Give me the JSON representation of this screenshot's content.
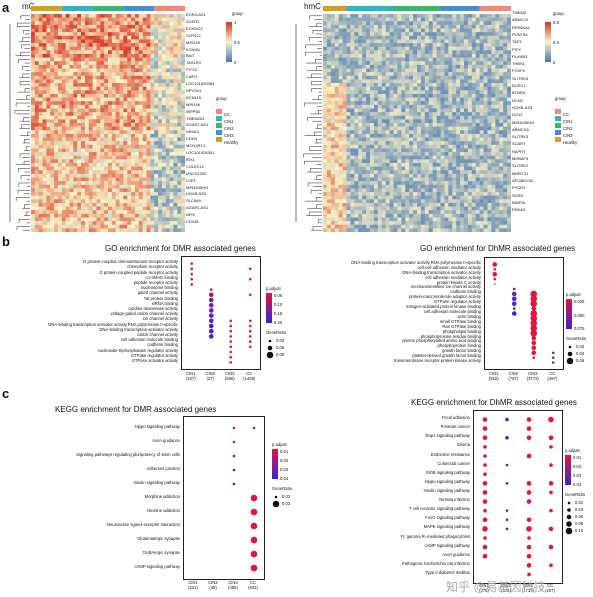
{
  "panels": {
    "a": "a",
    "b": "b",
    "c": "c"
  },
  "heatmap_left": {
    "title": "mC",
    "genes": [
      "EGR3-AS1",
      "ACER2",
      "ECHDC3",
      "SLFN12",
      "MIR155",
      "KCNH5",
      "BAIT",
      "TAS1R3",
      "PITX2",
      "CAPG",
      "LOC101929453",
      "DPYSL5",
      "RCN115",
      "MIR146",
      "INPP5D",
      "TMEM204",
      "AGAP2-AS1",
      "NR4A3",
      "CDH4",
      "MCN1R1.1",
      "LOC101928301",
      "IRX1",
      "COLEC11",
      "LINC01202",
      "LSP1",
      "MIR4435HG",
      "HOXB-AS3",
      "SLC9A9",
      "AGAP2-AS1",
      "NFIX",
      "CD248"
    ],
    "colorbar_ticks": [
      "1",
      "0.5",
      "0"
    ],
    "group_title": "group",
    "group_items": [
      "CC",
      "CIN1",
      "CIN2",
      "CIN3",
      "Healthy"
    ],
    "group_colors": [
      "#f58873",
      "#2ab8c4",
      "#34bb6a",
      "#3f8fdb",
      "#d4a016"
    ]
  },
  "heatmap_right": {
    "title": "hmC",
    "genes": [
      "TMEM2",
      "ARMC10",
      "RPS6KA1",
      "PLSCR4",
      "TAF3",
      "PITX",
      "PLXNB3",
      "THBS1",
      "FOXP2",
      "SLITRK3",
      "RUSC1",
      "BTBD9",
      "HCN2",
      "HOXB-AS3",
      "DLG2",
      "MIR4435HG",
      "ARMCX6",
      "SLITRK3",
      "SCART",
      "NAPRT",
      "MIR6879",
      "SLITRK2",
      "MIR6731",
      "APOBEC3C",
      "PYCR1",
      "SGSH",
      "BNIP3L",
      "PHKA2"
    ],
    "colorbar_ticks": [
      "0.8",
      "0.4",
      "0"
    ],
    "group_title": "group",
    "group_items": [
      "CC",
      "CIN1",
      "CIN2",
      "CIN3",
      "Healthy"
    ]
  },
  "padjust_title": "p.adjust",
  "generatio_title": "GeneRatio",
  "watermark": "知乎 @易基因科技",
  "chart_data": [
    {
      "type": "scatter",
      "title": "GO enrichment for DMR associated genes",
      "categories": [
        "CIN1\n(107)",
        "CIN2\n(27)",
        "CIN3\n(589)",
        "CC\n(1408)"
      ],
      "terms": [
        "G protein-coupled chemoattractant receptor activity",
        "chemokine receptor activity",
        "G protein-coupled peptide receptor activity",
        "co-SMAD binding",
        "peptide receptor activity",
        "nucleosome binding",
        "gated channel activity",
        "Tat protein binding",
        "siRNA binding",
        "cytidine deaminase activity",
        "voltage-gated cation channel activity",
        "ion channel activity",
        "DNA-binding transcription activator activity,RNA polymerase II-specific",
        "DNA-binding transcription activator activity",
        "cation channel activity",
        "cell adhesion molecule binding",
        "cadherin binding",
        "nucleoside-triphosphatase regulator activity",
        "GTPase regulator activity",
        "GTPase activator activity"
      ],
      "points": [
        [
          0,
          0,
          0.02,
          0.03
        ],
        [
          0,
          1,
          0.03,
          0.03
        ],
        [
          0,
          2,
          0.04,
          0.03
        ],
        [
          0,
          3,
          0.03,
          0.03
        ],
        [
          0,
          4,
          0.05,
          0.03
        ],
        [
          3,
          1,
          0.02,
          0.03
        ],
        [
          3,
          3,
          0.03,
          0.03
        ],
        [
          1,
          5,
          0.09,
          0.03
        ],
        [
          1,
          6,
          0.1,
          0.06
        ],
        [
          1,
          7,
          0.12,
          0.06
        ],
        [
          1,
          8,
          0.13,
          0.06
        ],
        [
          1,
          9,
          0.14,
          0.06
        ],
        [
          1,
          10,
          0.16,
          0.06
        ],
        [
          1,
          11,
          0.17,
          0.06
        ],
        [
          1,
          12,
          0.18,
          0.06
        ],
        [
          1,
          13,
          0.19,
          0.06
        ],
        [
          1,
          14,
          0.19,
          0.06
        ],
        [
          3,
          6,
          0.02,
          0.03
        ],
        [
          3,
          11,
          0.02,
          0.03
        ],
        [
          2,
          11,
          0.02,
          0.03
        ],
        [
          2,
          12,
          0.02,
          0.03
        ],
        [
          3,
          12,
          0.02,
          0.03
        ],
        [
          2,
          13,
          0.02,
          0.03
        ],
        [
          3,
          13,
          0.02,
          0.03
        ],
        [
          2,
          14,
          0.02,
          0.03
        ],
        [
          3,
          14,
          0.02,
          0.03
        ],
        [
          2,
          15,
          0.02,
          0.03
        ],
        [
          2,
          16,
          0.02,
          0.03
        ],
        [
          2,
          17,
          0.02,
          0.03
        ],
        [
          2,
          18,
          0.02,
          0.03
        ],
        [
          2,
          19,
          0.02,
          0.03
        ],
        [
          3,
          15,
          0.02,
          0.03
        ],
        [
          3,
          16,
          0.02,
          0.03
        ]
      ],
      "padjust_ticks": [
        "0.05",
        "0.10",
        "0.15",
        "0.20"
      ],
      "padjust_range": [
        0.02,
        0.2
      ],
      "generatio_ticks": [
        "0.03",
        "0.06",
        "0.09"
      ],
      "generatio_values": [
        0.03,
        0.06,
        0.09
      ]
    },
    {
      "type": "scatter",
      "title": "GO enrichment for DhMR associated genes",
      "categories": [
        "CIN1\n(919)",
        "CIN2\n(757)",
        "CIN3\n(3772)",
        "CC\n(497)"
      ],
      "terms": [
        "DNA-binding transcription activator activity,RNA polymerase II-specific",
        "cell-cell adhesion mediator activity",
        "DNA-binding transcription activator activity",
        "cell adhesion mediator activity",
        "protein kinase C activity",
        "mechanosensitive ion channel activity",
        "cadherin binding",
        "protein-macromolecule adaptor activity",
        "GTPase regulator activity",
        "mitogen-activated protein kinase binding",
        "cell adhesion molecule binding",
        "actin binding",
        "small GTPase binding",
        "Ras GTPase binding",
        "phospholipid binding",
        "phosphotyrosine residue binding",
        "protein phosphorylated amino acid binding",
        "phosphoprotein binding",
        "growth factor binding",
        "platelet-derived growth factor binding",
        "transmembrane receptor protein kinase activity"
      ],
      "points": [
        [
          0,
          0,
          0.01,
          0.04
        ],
        [
          0,
          1,
          0.01,
          0.02
        ],
        [
          0,
          2,
          0.01,
          0.04
        ],
        [
          0,
          3,
          0.01,
          0.02
        ],
        [
          0,
          4,
          0.02,
          0.01
        ],
        [
          1,
          5,
          0.06,
          0.02
        ],
        [
          1,
          6,
          0.06,
          0.04
        ],
        [
          1,
          7,
          0.07,
          0.04
        ],
        [
          1,
          8,
          0.07,
          0.04
        ],
        [
          1,
          9,
          0.07,
          0.02
        ],
        [
          1,
          10,
          0.08,
          0.04
        ],
        [
          2,
          6,
          0.01,
          0.06
        ],
        [
          2,
          7,
          0.01,
          0.06
        ],
        [
          2,
          8,
          0.01,
          0.06
        ],
        [
          2,
          9,
          0.01,
          0.04
        ],
        [
          2,
          10,
          0.01,
          0.06
        ],
        [
          2,
          11,
          0.01,
          0.06
        ],
        [
          2,
          12,
          0.01,
          0.06
        ],
        [
          2,
          13,
          0.01,
          0.06
        ],
        [
          2,
          14,
          0.01,
          0.06
        ],
        [
          2,
          15,
          0.01,
          0.04
        ],
        [
          2,
          16,
          0.01,
          0.04
        ],
        [
          2,
          17,
          0.01,
          0.04
        ],
        [
          2,
          18,
          0.01,
          0.04
        ],
        [
          2,
          19,
          0.01,
          0.02
        ],
        [
          3,
          18,
          0.06,
          0.02
        ],
        [
          3,
          19,
          0.05,
          0.02
        ],
        [
          3,
          20,
          0.05,
          0.02
        ]
      ],
      "padjust_ticks": [
        "0.025",
        "0.050",
        "0.075"
      ],
      "padjust_range": [
        0.01,
        0.08
      ],
      "generatio_ticks": [
        "0.02",
        "0.04",
        "0.06"
      ],
      "generatio_values": [
        0.02,
        0.04,
        0.06
      ]
    },
    {
      "type": "scatter",
      "title": "KEGG enrichment for DMR associated genes",
      "categories": [
        "CIN1\n(231)",
        "CIN2\n(48)",
        "CIN3\n(495)",
        "CC\n(603)"
      ],
      "terms": [
        "Hippo signaling pathway",
        "Axon guidance",
        "Signaling pathways regulating pluripotency of stem cells",
        "Adherens junction",
        "Insulin signaling pathway",
        "Morphine addiction",
        "Nicotine addiction",
        "Neuroactive ligand−receptor interaction",
        "Glutamatergic synapse",
        "GABAergic synapse",
        "cAMP signaling pathway"
      ],
      "points": [
        [
          2,
          0,
          0.005,
          0.02
        ],
        [
          3,
          0,
          0.02,
          0.02
        ],
        [
          2,
          1,
          0.01,
          0.02
        ],
        [
          2,
          2,
          0.03,
          0.02
        ],
        [
          2,
          3,
          0.035,
          0.02
        ],
        [
          2,
          4,
          0.04,
          0.02
        ],
        [
          3,
          5,
          0.005,
          0.03
        ],
        [
          3,
          6,
          0.005,
          0.03
        ],
        [
          3,
          7,
          0.005,
          0.03
        ],
        [
          3,
          8,
          0.005,
          0.03
        ],
        [
          3,
          9,
          0.005,
          0.03
        ],
        [
          3,
          10,
          0.005,
          0.03
        ]
      ],
      "padjust_ticks": [
        "0.01",
        "0.02",
        "0.03",
        "0.04"
      ],
      "padjust_range": [
        0.005,
        0.045
      ],
      "generatio_ticks": [
        "0.02",
        "0.03"
      ],
      "generatio_values": [
        0.02,
        0.03
      ]
    },
    {
      "type": "scatter",
      "title": "KEGG enrichment for DhMR associated genes",
      "categories": [
        "CIN1\n(375)",
        "CIN2\n(378)",
        "CIN3\n(1719)",
        "CC\n(207)"
      ],
      "terms": [
        "Focal adhesion",
        "Prostate cancer",
        "Rap1 signaling pathway",
        "Glioma",
        "Endocrine resistance",
        "Colorectal cancer",
        "ErbB signaling pathway",
        "Hippo signaling pathway",
        "Insulin signaling pathway",
        "Yersinia infection",
        "T cell receptor signaling pathway",
        "FoxO signaling pathway",
        "MAPK signaling pathway",
        "Fc gamma R−mediated phagocytosis",
        "cAMP signaling pathway",
        "Axon guidance",
        "Pathogenic Escherichia coli infection",
        "Type II diabetes mellitus"
      ],
      "points": [
        [
          0,
          0,
          0.005,
          0.06
        ],
        [
          0,
          1,
          0.005,
          0.06
        ],
        [
          0,
          2,
          0.005,
          0.06
        ],
        [
          0,
          3,
          0.005,
          0.04
        ],
        [
          0,
          4,
          0.005,
          0.04
        ],
        [
          0,
          5,
          0.005,
          0.04
        ],
        [
          0,
          6,
          0.005,
          0.04
        ],
        [
          0,
          7,
          0.005,
          0.06
        ],
        [
          0,
          8,
          0.005,
          0.06
        ],
        [
          0,
          9,
          0.005,
          0.06
        ],
        [
          0,
          10,
          0.005,
          0.04
        ],
        [
          0,
          11,
          0.005,
          0.06
        ],
        [
          0,
          12,
          0.005,
          0.08
        ],
        [
          0,
          13,
          0.005,
          0.04
        ],
        [
          0,
          14,
          0.005,
          0.06
        ],
        [
          0,
          15,
          0.005,
          0.06
        ],
        [
          1,
          0,
          0.04,
          0.04
        ],
        [
          1,
          2,
          0.04,
          0.04
        ],
        [
          1,
          5,
          0.04,
          0.02
        ],
        [
          1,
          7,
          0.04,
          0.02
        ],
        [
          1,
          10,
          0.04,
          0.02
        ],
        [
          1,
          11,
          0.04,
          0.02
        ],
        [
          1,
          12,
          0.045,
          0.02
        ],
        [
          2,
          0,
          0.005,
          0.06
        ],
        [
          2,
          1,
          0.005,
          0.06
        ],
        [
          2,
          2,
          0.005,
          0.06
        ],
        [
          2,
          4,
          0.005,
          0.06
        ],
        [
          2,
          7,
          0.005,
          0.06
        ],
        [
          2,
          8,
          0.005,
          0.06
        ],
        [
          2,
          9,
          0.005,
          0.06
        ],
        [
          2,
          11,
          0.005,
          0.06
        ],
        [
          2,
          12,
          0.005,
          0.08
        ],
        [
          2,
          13,
          0.005,
          0.04
        ],
        [
          2,
          14,
          0.005,
          0.06
        ],
        [
          2,
          15,
          0.005,
          0.06
        ],
        [
          2,
          16,
          0.005,
          0.06
        ],
        [
          2,
          17,
          0.005,
          0.04
        ],
        [
          3,
          0,
          0.005,
          0.08
        ],
        [
          3,
          2,
          0.005,
          0.06
        ],
        [
          3,
          3,
          0.005,
          0.04
        ],
        [
          3,
          5,
          0.005,
          0.04
        ],
        [
          3,
          7,
          0.005,
          0.06
        ],
        [
          3,
          8,
          0.005,
          0.04
        ],
        [
          3,
          10,
          0.005,
          0.04
        ],
        [
          3,
          12,
          0.005,
          0.06
        ],
        [
          3,
          14,
          0.005,
          0.06
        ],
        [
          3,
          16,
          0.005,
          0.04
        ]
      ],
      "padjust_ticks": [
        "0.01",
        "0.02",
        "0.03",
        "0.04"
      ],
      "padjust_range": [
        0.005,
        0.045
      ],
      "generatio_ticks": [
        "0.02",
        "0.04",
        "0.06",
        "0.08",
        "0.10"
      ],
      "generatio_values": [
        0.02,
        0.04,
        0.06,
        0.08,
        0.1
      ]
    }
  ]
}
